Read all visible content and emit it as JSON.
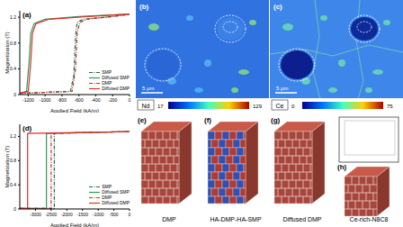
{
  "chart_data": [
    {
      "panel": "(a)",
      "type": "line",
      "x_label": "Applied Field (kA/m)",
      "y_label": "Magnetization (T)",
      "xlim": [
        -1300,
        0
      ],
      "xticks": [
        -1200,
        -1000,
        -800,
        -600,
        -400,
        -200,
        0
      ],
      "ylim": [
        0,
        1.3
      ],
      "yticks": [
        0,
        0.4,
        0.8,
        1.2
      ],
      "legend": "lower right",
      "series": [
        {
          "name": "SMP",
          "color": "#1b6e45",
          "line_style": "dashdot",
          "x": [
            -1300,
            -700,
            -660,
            -640,
            -620,
            -550,
            -300,
            0
          ],
          "values": [
            0.02,
            0.05,
            0.3,
            0.9,
            1.12,
            1.17,
            1.2,
            1.24
          ]
        },
        {
          "name": "Diffused SMP",
          "color": "#2e9a5c",
          "line_style": "solid",
          "x": [
            -1300,
            -1220,
            -1190,
            -1170,
            -1130,
            -1000,
            -600,
            0
          ],
          "values": [
            0.02,
            0.05,
            0.5,
            0.95,
            1.1,
            1.17,
            1.21,
            1.25
          ]
        },
        {
          "name": "DMP",
          "color": "#b8322a",
          "line_style": "dashdot",
          "x": [
            -1300,
            -680,
            -640,
            -620,
            -590,
            -500,
            -200,
            0
          ],
          "values": [
            0.02,
            0.05,
            0.4,
            0.95,
            1.12,
            1.17,
            1.21,
            1.25
          ]
        },
        {
          "name": "Diffused DMP",
          "color": "#e0302a",
          "line_style": "solid",
          "x": [
            -1300,
            -1200,
            -1170,
            -1150,
            -1110,
            -950,
            -500,
            0
          ],
          "values": [
            0.02,
            0.05,
            0.5,
            0.95,
            1.1,
            1.17,
            1.21,
            1.25
          ]
        }
      ]
    },
    {
      "panel": "(d)",
      "type": "line",
      "x_label": "Applied Field (kA/m)",
      "y_label": "Magnetization (T)",
      "xlim": [
        -3500,
        0
      ],
      "xticks": [
        -3000,
        -2500,
        -2000,
        -1500,
        -1000,
        -500,
        0
      ],
      "ylim": [
        0,
        1.4
      ],
      "yticks": [
        0,
        0.4,
        0.8,
        1.2
      ],
      "legend": "lower right",
      "series": [
        {
          "name": "SMP",
          "color": "#1b6e45",
          "line_style": "dashdot",
          "x": [
            -3500,
            -2400,
            -2400,
            0
          ],
          "values": [
            0.01,
            0.01,
            1.25,
            1.28
          ]
        },
        {
          "name": "Diffused SMP",
          "color": "#2e9a5c",
          "line_style": "solid",
          "x": [
            -3500,
            -2650,
            -2650,
            0
          ],
          "values": [
            0.01,
            0.01,
            1.25,
            1.28
          ]
        },
        {
          "name": "DMP",
          "color": "#b8322a",
          "line_style": "dashdot",
          "x": [
            -3500,
            -2500,
            -2500,
            0
          ],
          "values": [
            0.01,
            0.01,
            1.25,
            1.28
          ]
        },
        {
          "name": "Diffused DMP",
          "color": "#e0302a",
          "line_style": "solid",
          "x": [
            -3500,
            -3250,
            -3250,
            0
          ],
          "values": [
            0.01,
            0.01,
            1.25,
            1.28
          ]
        }
      ]
    }
  ],
  "maps": [
    {
      "panel": "(b)",
      "element": "Nd",
      "colorbar_range": [
        17,
        129
      ],
      "scale_bar": "5 μm"
    },
    {
      "panel": "(c)",
      "element": "Ce",
      "colorbar_range": [
        0,
        75
      ],
      "scale_bar": "5 μm"
    }
  ],
  "renders": [
    {
      "panel": "(e)",
      "label": "DMP"
    },
    {
      "panel": "(f)",
      "label": "HA-DMP-HA-SMP"
    },
    {
      "panel": "(g)",
      "label": "Diffused DMP"
    },
    {
      "panel": "(h)",
      "label": "Ce-rich-N8C8"
    }
  ]
}
